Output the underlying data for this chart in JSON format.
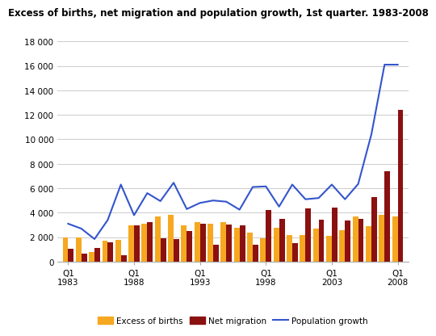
{
  "title": "Excess of births, net migration and population growth, 1st quarter. 1983-2008",
  "years": [
    1983,
    1984,
    1985,
    1986,
    1987,
    1988,
    1989,
    1990,
    1991,
    1992,
    1993,
    1994,
    1995,
    1996,
    1997,
    1998,
    1999,
    2000,
    2001,
    2002,
    2003,
    2004,
    2005,
    2006,
    2007,
    2008
  ],
  "excess_births": [
    2000,
    2000,
    800,
    1700,
    1800,
    3000,
    3100,
    3700,
    3800,
    3000,
    3200,
    3100,
    3200,
    2800,
    2400,
    1900,
    2800,
    2200,
    2200,
    2700,
    2100,
    2600,
    3700,
    2900,
    3800,
    3700
  ],
  "net_migration": [
    1050,
    650,
    1100,
    1600,
    550,
    3000,
    3200,
    1900,
    1850,
    2500,
    3100,
    1400,
    3050,
    3000,
    1400,
    4200,
    3500,
    1500,
    4350,
    3400,
    4400,
    3350,
    3500,
    5300,
    7400,
    12400
  ],
  "population_growth": [
    3100,
    2700,
    1850,
    3400,
    6300,
    3800,
    5600,
    4950,
    6450,
    4300,
    4800,
    5000,
    4900,
    4250,
    6100,
    6150,
    4500,
    6300,
    5100,
    5200,
    6300,
    5100,
    6350,
    10400,
    16100,
    16100
  ],
  "bar_color_births": "#F5A820",
  "bar_color_migration": "#8B1010",
  "line_color": "#3355CC",
  "ylim": [
    0,
    18000
  ],
  "yticks": [
    0,
    2000,
    4000,
    6000,
    8000,
    10000,
    12000,
    14000,
    16000,
    18000
  ],
  "ytick_labels": [
    "0",
    "2 000",
    "4 000",
    "6 000",
    "8 000",
    "10 000",
    "12 000",
    "14 000",
    "16 000",
    "18 000"
  ],
  "xtick_years": [
    1983,
    1988,
    1993,
    1998,
    2003,
    2008
  ],
  "legend_births": "Excess of births",
  "legend_migration": "Net migration",
  "legend_growth": "Population growth",
  "background_color": "#ffffff",
  "grid_color": "#cccccc",
  "title_fontsize": 8.5,
  "tick_fontsize": 7.5,
  "legend_fontsize": 7.5
}
